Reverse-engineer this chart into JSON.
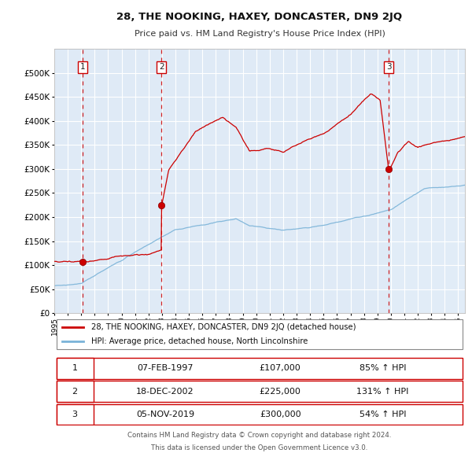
{
  "title": "28, THE NOOKING, HAXEY, DONCASTER, DN9 2JQ",
  "subtitle": "Price paid vs. HM Land Registry's House Price Index (HPI)",
  "legend_line1": "28, THE NOOKING, HAXEY, DONCASTER, DN9 2JQ (detached house)",
  "legend_line2": "HPI: Average price, detached house, North Lincolnshire",
  "footer1": "Contains HM Land Registry data © Crown copyright and database right 2024.",
  "footer2": "This data is licensed under the Open Government Licence v3.0.",
  "transactions": [
    {
      "num": 1,
      "date": "07-FEB-1997",
      "price": "£107,000",
      "pct": "85%",
      "dir": "↑"
    },
    {
      "num": 2,
      "date": "18-DEC-2002",
      "price": "£225,000",
      "pct": "131%",
      "dir": "↑"
    },
    {
      "num": 3,
      "date": "05-NOV-2019",
      "price": "£300,000",
      "pct": "54%",
      "dir": "↑"
    }
  ],
  "sale_years": [
    1997.1,
    2002.96,
    2019.84
  ],
  "sale_prices": [
    107000,
    225000,
    300000
  ],
  "hpi_color": "#7ab3d8",
  "price_color": "#cc0000",
  "vline_color": "#cc0000",
  "plot_bg": "#e4eef8",
  "grid_color": "#ffffff",
  "ylim": [
    0,
    550000
  ],
  "yticks": [
    0,
    50000,
    100000,
    150000,
    200000,
    250000,
    300000,
    350000,
    400000,
    450000,
    500000
  ],
  "xlim_start": 1995.0,
  "xlim_end": 2025.5
}
